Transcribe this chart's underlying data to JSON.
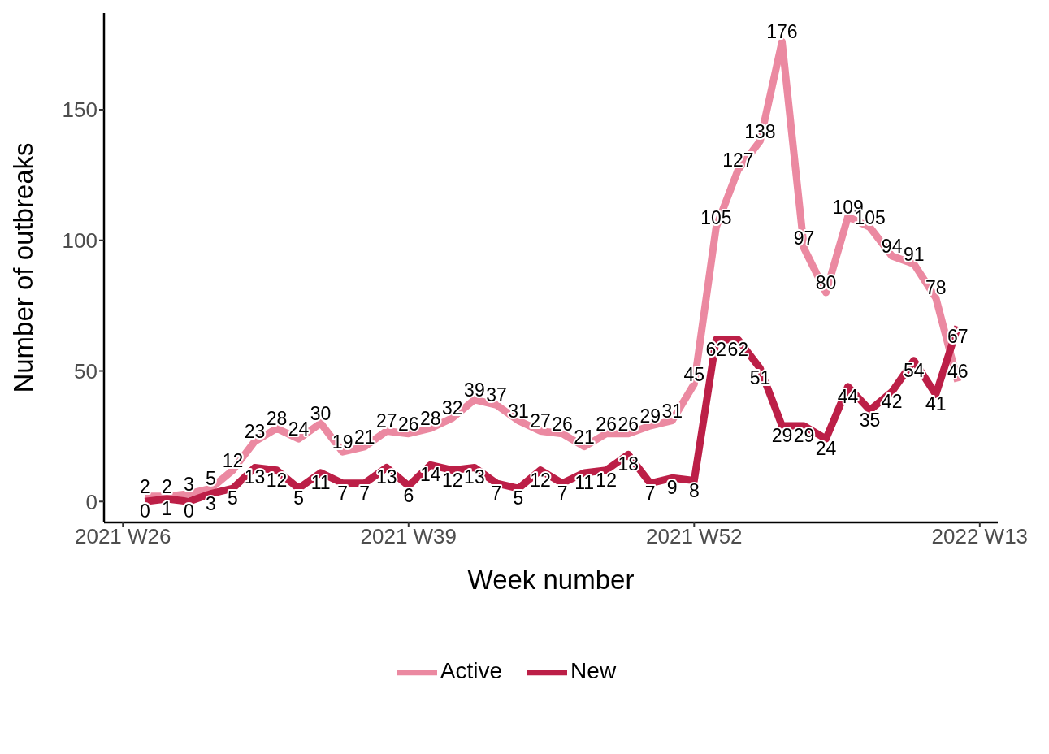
{
  "chart_data": {
    "type": "line",
    "xlabel": "Week number",
    "ylabel": "Number of outbreaks",
    "categories": [
      "2021 W26",
      null,
      null,
      null,
      null,
      null,
      null,
      null,
      null,
      null,
      null,
      null,
      null,
      "2021 W39",
      null,
      null,
      null,
      null,
      null,
      null,
      null,
      null,
      null,
      null,
      null,
      null,
      "2021 W52",
      null,
      null,
      null,
      null,
      null,
      null,
      null,
      null,
      null,
      null,
      null,
      null,
      "2022 W13"
    ],
    "series": [
      {
        "name": "Active",
        "color": "#eb89a1",
        "values": [
          null,
          2,
          2,
          3,
          5,
          12,
          23,
          28,
          24,
          30,
          19,
          21,
          27,
          26,
          28,
          32,
          39,
          37,
          31,
          27,
          26,
          21,
          26,
          26,
          29,
          31,
          45,
          105,
          127,
          138,
          176,
          97,
          80,
          109,
          105,
          94,
          91,
          78,
          46,
          null
        ]
      },
      {
        "name": "New",
        "color": "#bc1f47",
        "values": [
          null,
          0,
          1,
          0,
          3,
          5,
          13,
          12,
          5,
          11,
          7,
          7,
          13,
          6,
          14,
          12,
          13,
          7,
          5,
          12,
          7,
          11,
          12,
          18,
          7,
          9,
          8,
          62,
          62,
          51,
          29,
          29,
          24,
          44,
          35,
          42,
          54,
          41,
          67,
          null
        ]
      }
    ],
    "ylim": [
      -8,
      187
    ],
    "yticks": [
      0,
      50,
      100,
      150
    ],
    "grid": false,
    "legend": "bottom",
    "data_labels": true,
    "marker": "none",
    "line_style": "solid"
  }
}
